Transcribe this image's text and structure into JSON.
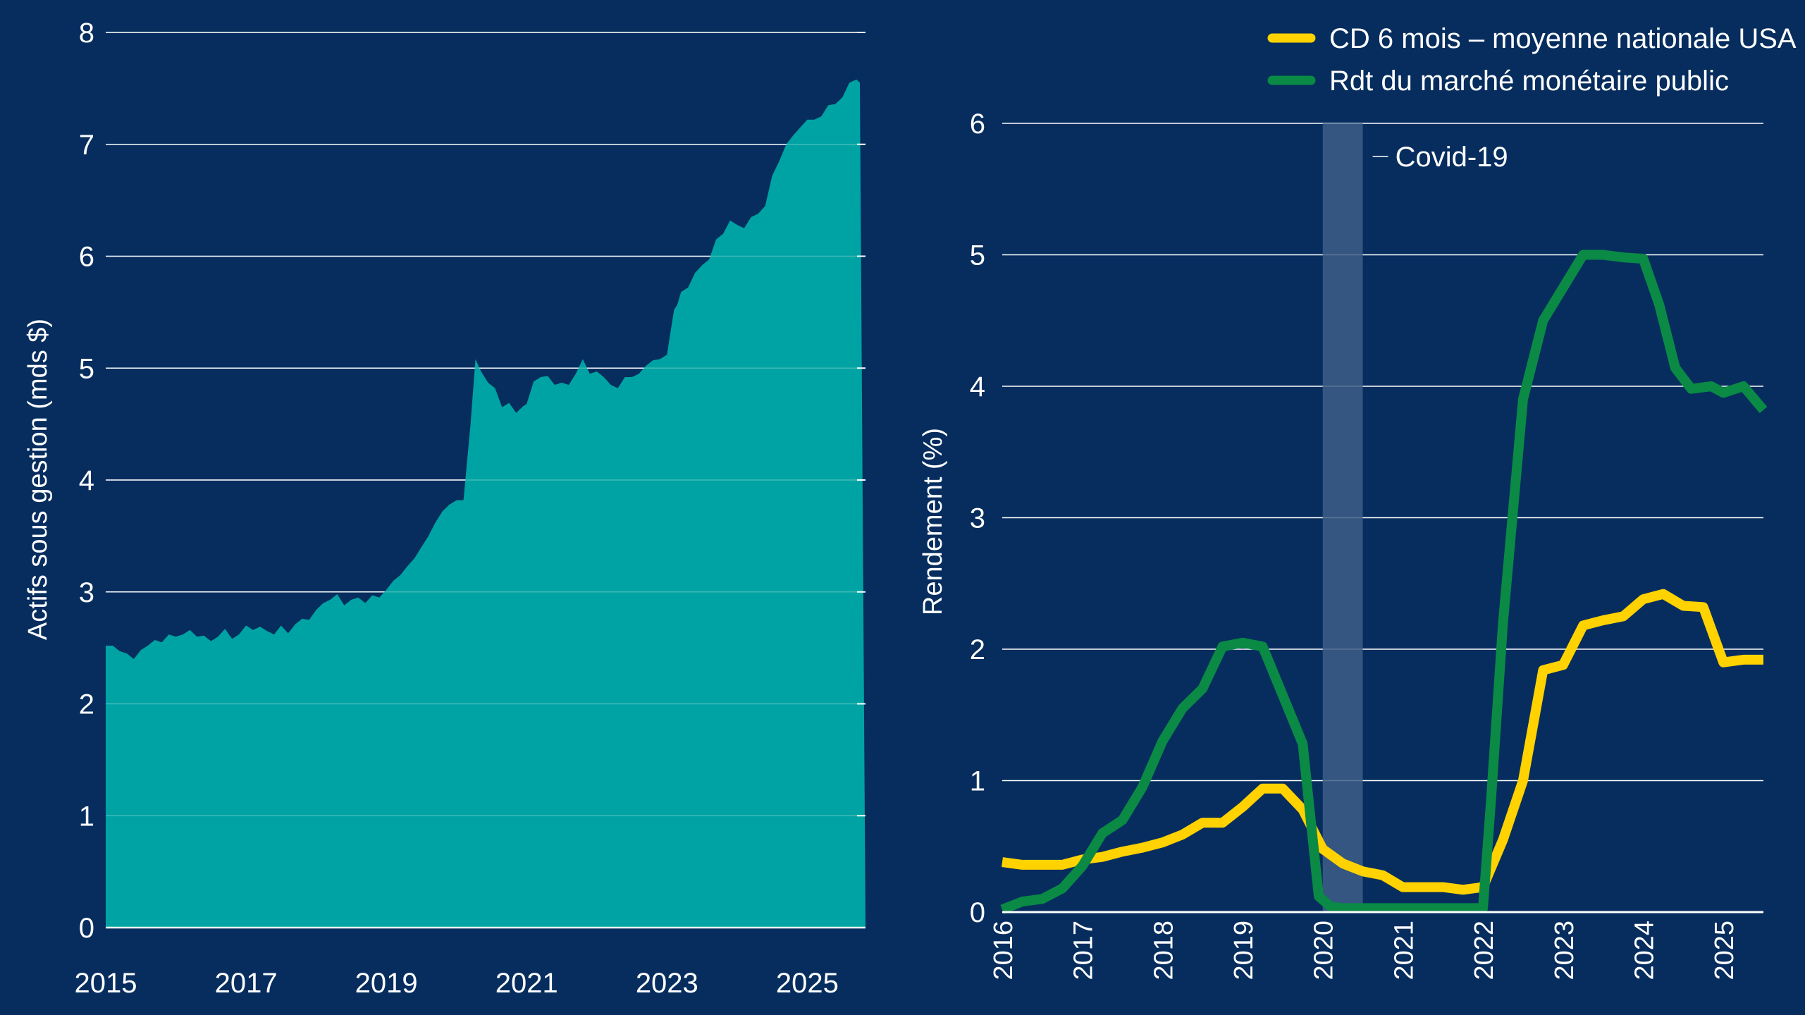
{
  "colors": {
    "background": "#062d5e",
    "area_fill": "#00a3a3",
    "gridline": "#ffffff",
    "axis_text": "#ffffff",
    "cd_line": "#ffd200",
    "mm_line": "#0a8a45",
    "covid_band": "#3d5e86"
  },
  "chart_data": [
    {
      "type": "area",
      "title": "",
      "xlabel": "",
      "ylabel": "Actifs sous gestion (mds $)",
      "xlim": [
        2015.0,
        2025.83
      ],
      "ylim": [
        0,
        8
      ],
      "xticks": [
        "2015",
        "2017",
        "2019",
        "2021",
        "2023",
        "2025"
      ],
      "yticks": [
        "0",
        "1",
        "2",
        "3",
        "4",
        "5",
        "6",
        "7",
        "8"
      ],
      "grid": true,
      "series": [
        {
          "x": [
            2015.0,
            2015.1,
            2015.2,
            2015.3,
            2015.4,
            2015.5,
            2015.6,
            2015.7,
            2015.8,
            2015.9,
            2016.0,
            2016.1,
            2016.2,
            2016.3,
            2016.4,
            2016.5,
            2016.6,
            2016.7,
            2016.8,
            2016.9,
            2017.0,
            2017.1,
            2017.2,
            2017.3,
            2017.4,
            2017.5,
            2017.6,
            2017.7,
            2017.8,
            2017.9,
            2018.0,
            2018.1,
            2018.2,
            2018.3,
            2018.4,
            2018.5,
            2018.6,
            2018.7,
            2018.8,
            2018.9,
            2019.0,
            2019.1,
            2019.2,
            2019.3,
            2019.4,
            2019.5,
            2019.6,
            2019.7,
            2019.8,
            2019.9,
            2020.0,
            2020.1,
            2020.2,
            2020.27,
            2020.35,
            2020.45,
            2020.55,
            2020.65,
            2020.75,
            2020.85,
            2020.95,
            2021.0,
            2021.1,
            2021.2,
            2021.3,
            2021.4,
            2021.5,
            2021.6,
            2021.7,
            2021.8,
            2021.9,
            2022.0,
            2022.1,
            2022.2,
            2022.3,
            2022.4,
            2022.5,
            2022.6,
            2022.7,
            2022.8,
            2022.9,
            2023.0,
            2023.1,
            2023.15,
            2023.2,
            2023.3,
            2023.4,
            2023.5,
            2023.6,
            2023.7,
            2023.8,
            2023.9,
            2024.0,
            2024.1,
            2024.2,
            2024.3,
            2024.4,
            2024.5,
            2024.6,
            2024.7,
            2024.8,
            2024.9,
            2025.0,
            2025.1,
            2025.2,
            2025.3,
            2025.4,
            2025.5,
            2025.6,
            2025.7,
            2025.75,
            2025.83
          ],
          "values": [
            2.52,
            2.52,
            2.47,
            2.45,
            2.4,
            2.48,
            2.52,
            2.57,
            2.55,
            2.62,
            2.6,
            2.62,
            2.66,
            2.6,
            2.61,
            2.56,
            2.6,
            2.67,
            2.58,
            2.62,
            2.7,
            2.66,
            2.69,
            2.65,
            2.62,
            2.7,
            2.63,
            2.71,
            2.76,
            2.75,
            2.84,
            2.9,
            2.93,
            2.98,
            2.88,
            2.93,
            2.95,
            2.9,
            2.97,
            2.95,
            3.02,
            3.1,
            3.15,
            3.23,
            3.3,
            3.4,
            3.5,
            3.62,
            3.72,
            3.78,
            3.82,
            3.82,
            4.5,
            5.08,
            4.97,
            4.87,
            4.82,
            4.65,
            4.69,
            4.6,
            4.66,
            4.68,
            4.88,
            4.92,
            4.93,
            4.85,
            4.87,
            4.85,
            4.95,
            5.08,
            4.95,
            4.97,
            4.92,
            4.85,
            4.82,
            4.92,
            4.92,
            4.95,
            5.02,
            5.07,
            5.08,
            5.12,
            5.52,
            5.57,
            5.68,
            5.72,
            5.85,
            5.92,
            5.97,
            6.15,
            6.2,
            6.32,
            6.28,
            6.25,
            6.35,
            6.38,
            6.45,
            6.72,
            6.85,
            7.0,
            7.08,
            7.15,
            7.22,
            7.22,
            7.25,
            7.35,
            7.36,
            7.42,
            7.55,
            7.58,
            7.55,
            0.0
          ]
        }
      ]
    },
    {
      "type": "line",
      "title": "",
      "xlabel": "",
      "ylabel": "Rendement (%)",
      "xlim": [
        2016.0,
        2025.5
      ],
      "ylim": [
        0,
        6.0
      ],
      "xticks": [
        "2016",
        "2017",
        "2018",
        "2019",
        "2020",
        "2021",
        "2022",
        "2023",
        "2024",
        "2025"
      ],
      "yticks": [
        "0",
        "1",
        "2",
        "3",
        "4",
        "5",
        "6"
      ],
      "grid": true,
      "legend_position": "top-right",
      "annotation": {
        "label": "Covid-19",
        "x_start": 2020.0,
        "x_end": 2020.5
      },
      "series": [
        {
          "name": "CD 6 mois – moyenne nationale USA",
          "color": "#ffd200",
          "x": [
            2016.0,
            2016.25,
            2016.5,
            2016.75,
            2017.0,
            2017.25,
            2017.5,
            2017.75,
            2018.0,
            2018.25,
            2018.5,
            2018.75,
            2019.0,
            2019.25,
            2019.5,
            2019.75,
            2020.0,
            2020.25,
            2020.5,
            2020.75,
            2021.0,
            2021.25,
            2021.5,
            2021.75,
            2022.0,
            2022.25,
            2022.5,
            2022.75,
            2023.0,
            2023.25,
            2023.5,
            2023.75,
            2024.0,
            2024.25,
            2024.5,
            2024.75,
            2025.0,
            2025.25,
            2025.5
          ],
          "values": [
            0.38,
            0.36,
            0.36,
            0.36,
            0.4,
            0.42,
            0.46,
            0.49,
            0.53,
            0.59,
            0.68,
            0.68,
            0.8,
            0.94,
            0.94,
            0.78,
            0.48,
            0.37,
            0.31,
            0.28,
            0.19,
            0.19,
            0.19,
            0.17,
            0.19,
            0.55,
            1.0,
            1.84,
            1.88,
            2.18,
            2.22,
            2.25,
            2.38,
            2.42,
            2.33,
            2.32,
            1.9,
            1.92,
            1.92
          ]
        },
        {
          "name": "Rdt du marché monétaire public",
          "color": "#0a8a45",
          "x": [
            2016.0,
            2016.25,
            2016.5,
            2016.75,
            2017.0,
            2017.25,
            2017.5,
            2017.75,
            2018.0,
            2018.25,
            2018.5,
            2018.75,
            2019.0,
            2019.25,
            2019.5,
            2019.75,
            2019.95,
            2020.1,
            2020.25,
            2020.5,
            2020.75,
            2021.0,
            2021.25,
            2021.5,
            2021.75,
            2022.0,
            2022.1,
            2022.25,
            2022.5,
            2022.75,
            2023.0,
            2023.25,
            2023.5,
            2023.75,
            2024.0,
            2024.2,
            2024.4,
            2024.6,
            2024.85,
            2025.0,
            2025.25,
            2025.5
          ],
          "values": [
            0.02,
            0.08,
            0.1,
            0.18,
            0.35,
            0.6,
            0.7,
            0.95,
            1.3,
            1.55,
            1.7,
            2.02,
            2.05,
            2.02,
            1.65,
            1.28,
            0.12,
            0.04,
            0.03,
            0.03,
            0.03,
            0.03,
            0.03,
            0.03,
            0.03,
            0.03,
            0.85,
            2.2,
            3.9,
            4.5,
            4.75,
            5.0,
            5.0,
            4.98,
            4.97,
            4.62,
            4.14,
            3.98,
            4.0,
            3.95,
            4.0,
            3.82
          ]
        }
      ]
    }
  ]
}
